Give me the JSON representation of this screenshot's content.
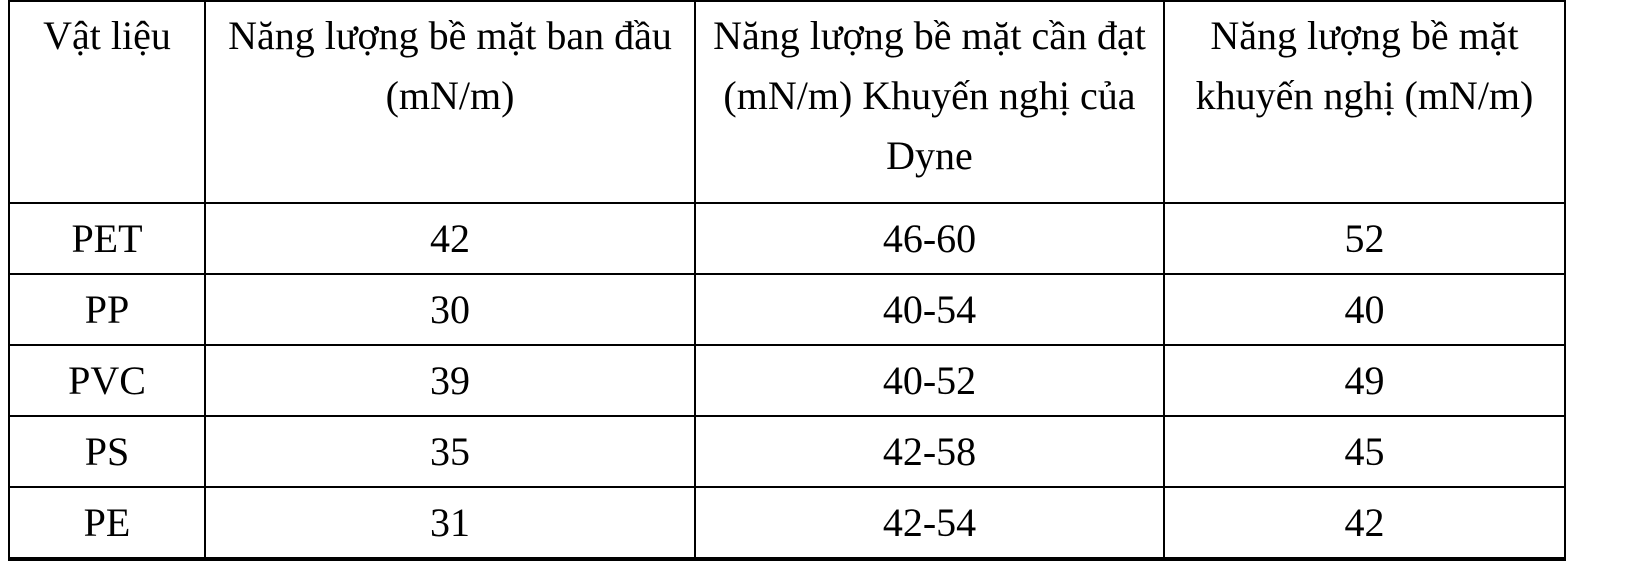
{
  "table": {
    "headers": [
      "Vật liệu",
      "Năng lượng bề mặt ban đầu (mN/m)",
      "Năng lượng bề mặt cần đạt (mN/m) Khuyến nghị của Dyne",
      "Năng lượng bề mặt khuyến nghị (mN/m)"
    ],
    "rows": [
      [
        "PET",
        "42",
        "46-60",
        "52"
      ],
      [
        "PP",
        "30",
        "40-54",
        "40"
      ],
      [
        "PVC",
        "39",
        "40-52",
        "49"
      ],
      [
        "PS",
        "35",
        "42-58",
        "45"
      ],
      [
        "PE",
        "31",
        "42-54",
        "42"
      ]
    ]
  }
}
